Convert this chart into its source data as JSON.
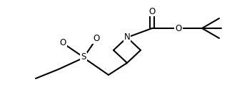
{
  "bg_color": "#ffffff",
  "line_color": "#000000",
  "line_width": 1.5,
  "font_size_atoms": 8.5,
  "fig_width": 3.25,
  "fig_height": 1.33,
  "dpi": 100,
  "xlim": [
    0,
    3.25
  ],
  "ylim": [
    0,
    1.33
  ]
}
